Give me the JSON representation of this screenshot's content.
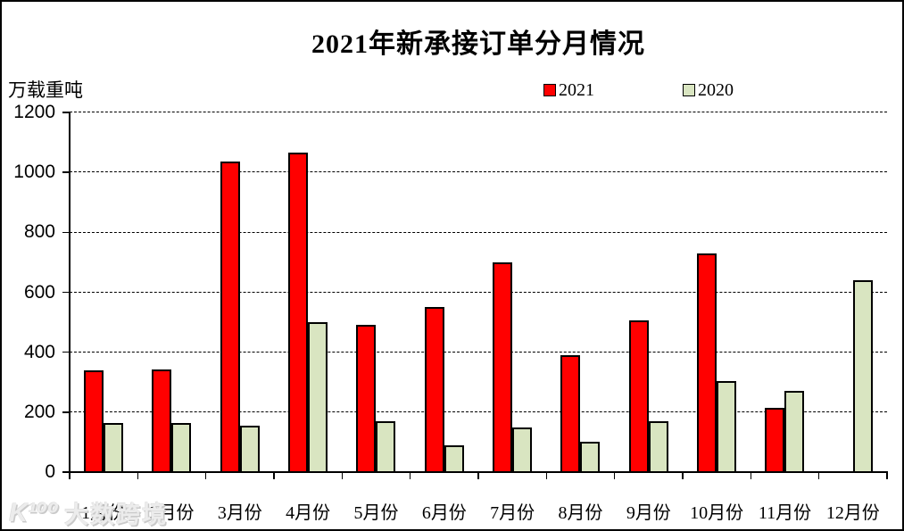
{
  "chart_data": {
    "type": "bar",
    "title": "2021年新承接订单分月情况",
    "ylabel": "万载重吨",
    "xlabel": "",
    "categories": [
      "1月份",
      "2月份",
      "3月份",
      "4月份",
      "5月份",
      "6月份",
      "7月份",
      "8月份",
      "9月份",
      "10月份",
      "11月份",
      "12月份"
    ],
    "series": [
      {
        "name": "2021",
        "color": "#ff0000",
        "values": [
          340,
          343,
          1035,
          1065,
          490,
          550,
          700,
          390,
          505,
          730,
          215,
          0
        ]
      },
      {
        "name": "2020",
        "color": "#d9e5c1",
        "values": [
          165,
          165,
          155,
          500,
          170,
          90,
          150,
          100,
          170,
          305,
          270,
          640
        ]
      }
    ],
    "ylim": [
      0,
      1200
    ],
    "ytick_step": 200,
    "grid": "horizontal-dashed",
    "legend_position": "top-center"
  },
  "legend": {
    "items": [
      {
        "label": "2021",
        "color": "#ff0000"
      },
      {
        "label": "2020",
        "color": "#d9e5c1"
      }
    ]
  },
  "watermark": {
    "logo": "K¹⁰⁰",
    "text": "大数跨境"
  }
}
